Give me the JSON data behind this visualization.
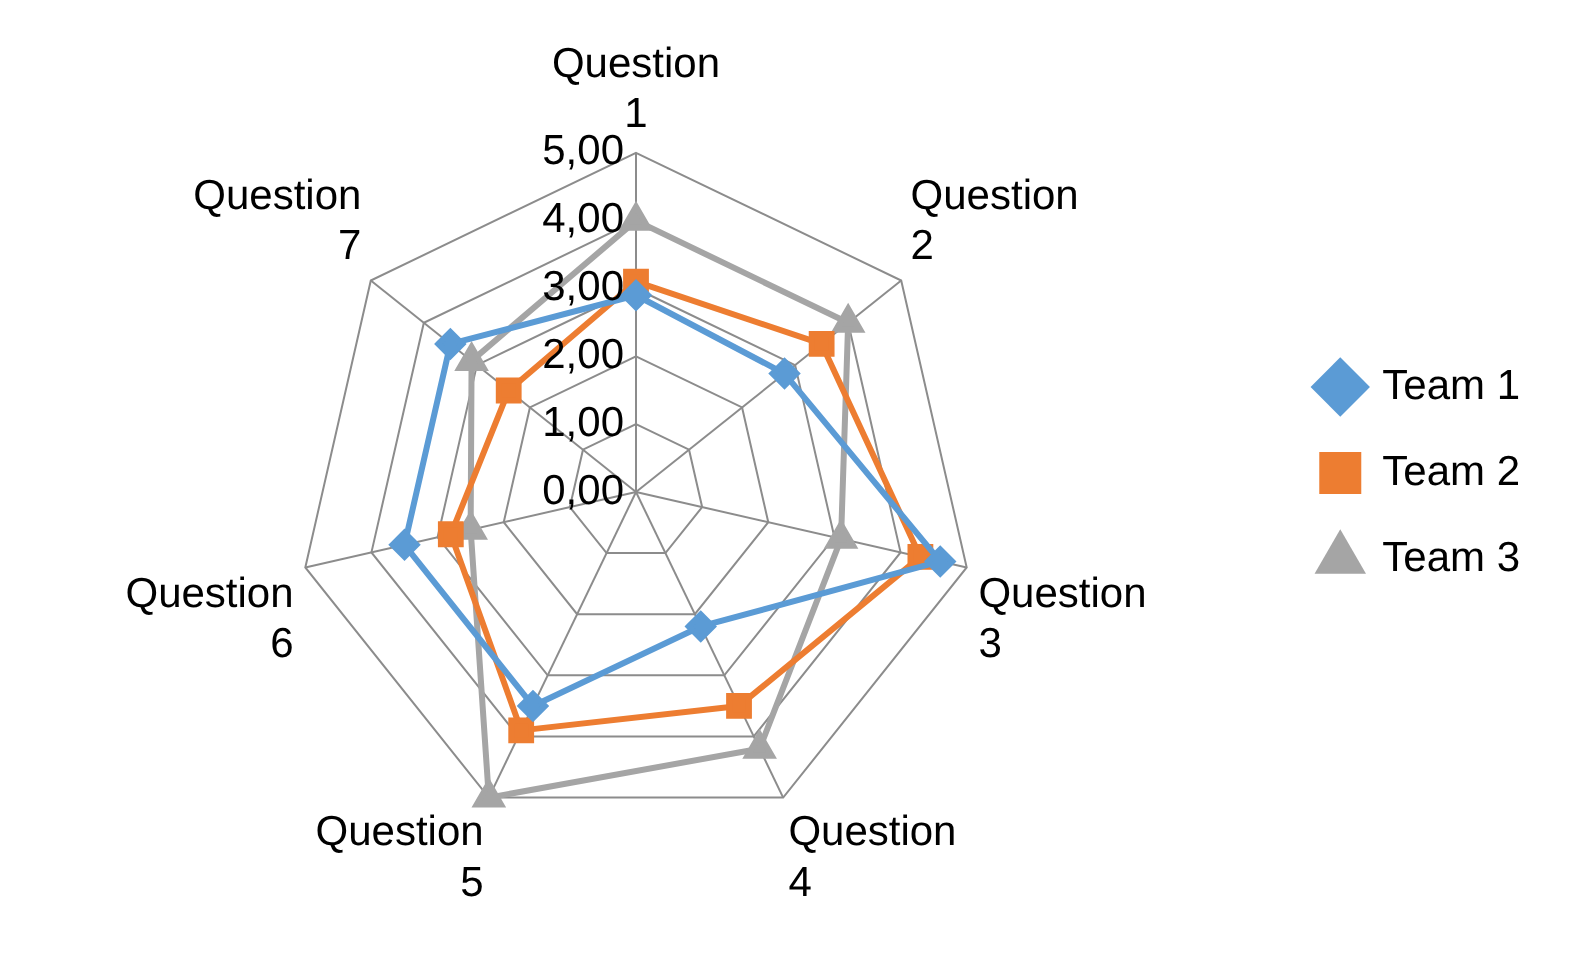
{
  "chart_data": {
    "type": "radar",
    "categories": [
      "Question 1",
      "Question 2",
      "Question 3",
      "Question 4",
      "Question 5",
      "Question 6",
      "Question 7"
    ],
    "series": [
      {
        "name": "Team 1",
        "color": "#5b9bd5",
        "marker": "diamond",
        "values": [
          2.9,
          2.8,
          4.6,
          2.2,
          3.5,
          3.5,
          3.5
        ]
      },
      {
        "name": "Team 2",
        "color": "#ed7d31",
        "marker": "square",
        "values": [
          3.1,
          3.5,
          4.3,
          3.5,
          3.9,
          2.8,
          2.4
        ]
      },
      {
        "name": "Team 3",
        "color": "#a5a5a5",
        "marker": "triangle",
        "values": [
          4.0,
          4.0,
          3.1,
          4.2,
          5.0,
          2.5,
          3.1
        ]
      }
    ],
    "ylim": [
      0,
      5
    ],
    "yticks": [
      {
        "value": 0,
        "label": "0,00"
      },
      {
        "value": 1,
        "label": "1,00"
      },
      {
        "value": 2,
        "label": "2,00"
      },
      {
        "value": 3,
        "label": "3,00"
      },
      {
        "value": 4,
        "label": "4,00"
      },
      {
        "value": 5,
        "label": "5,00"
      }
    ],
    "grid": true,
    "legend": "right"
  }
}
